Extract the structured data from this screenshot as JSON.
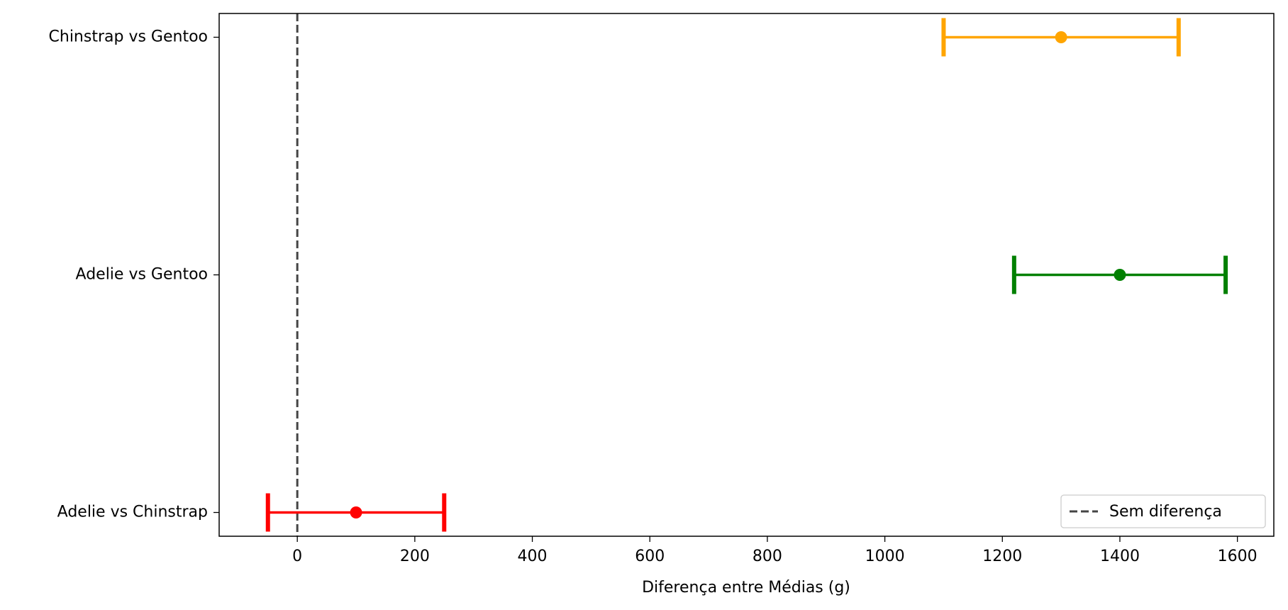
{
  "chart_data": {
    "type": "errorbar",
    "categories": [
      "Adelie vs Chinstrap",
      "Adelie vs Gentoo",
      "Chinstrap vs Gentoo"
    ],
    "values": [
      100,
      1400,
      1300
    ],
    "errors": [
      150,
      180,
      200
    ],
    "colors": [
      "#ff0000",
      "#008000",
      "#ffa500"
    ],
    "xlabel": "Diferença entre Médias (g)",
    "xlim": [
      -133,
      1662
    ],
    "xticks": [
      0,
      200,
      400,
      600,
      800,
      1000,
      1200,
      1400,
      1600
    ],
    "ref_line": {
      "value": 0,
      "label": "Sem diferença",
      "color": "#444444"
    },
    "legend": "lower right"
  }
}
